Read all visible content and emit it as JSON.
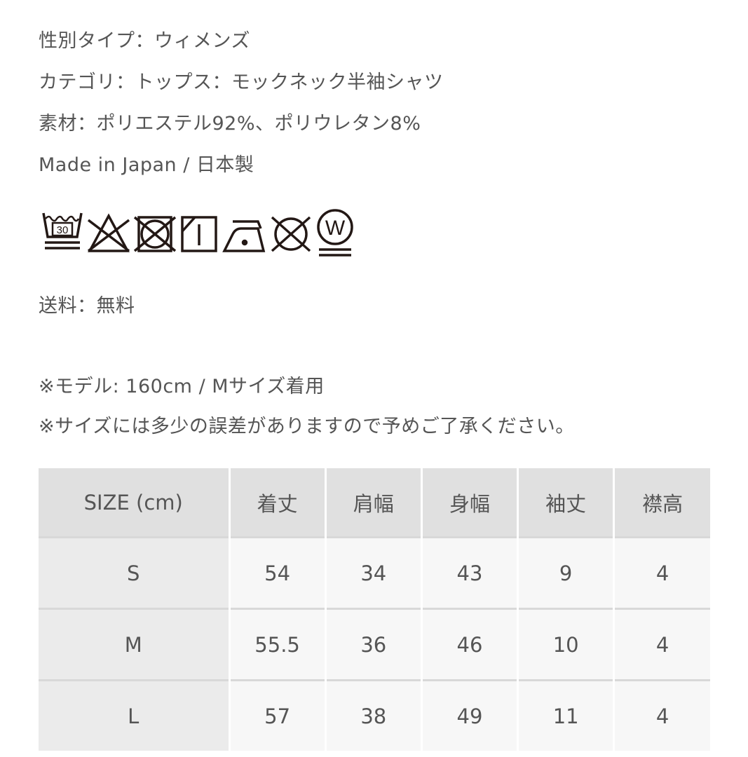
{
  "details": {
    "gender": "性別タイプ：ウィメンズ",
    "category": "カテゴリ：トップス：モックネック半袖シャツ",
    "material": "素材：ポリエステル92%、ポリウレタン8%",
    "origin": "Made in Japan / 日本製"
  },
  "care_icons": [
    "wash-30-gentle-icon",
    "no-bleach-icon",
    "no-tumble-dry-icon",
    "drip-dry-shade-icon",
    "iron-low-icon",
    "no-dry-clean-icon",
    "wet-clean-gentle-icon"
  ],
  "care_wash_temp": "30",
  "care_wet_letter": "W",
  "shipping": "送料：無料",
  "notes": [
    "※モデル: 160cm / Mサイズ着用",
    "※サイズには多少の誤差がありますので予めご了承ください。"
  ],
  "size_table": {
    "headers": [
      "SIZE (cm)",
      "着丈",
      "肩幅",
      "身幅",
      "袖丈",
      "襟高"
    ],
    "rows": [
      [
        "S",
        "54",
        "34",
        "43",
        "9",
        "4"
      ],
      [
        "M",
        "55.5",
        "36",
        "46",
        "10",
        "4"
      ],
      [
        "L",
        "57",
        "38",
        "49",
        "11",
        "4"
      ]
    ]
  }
}
